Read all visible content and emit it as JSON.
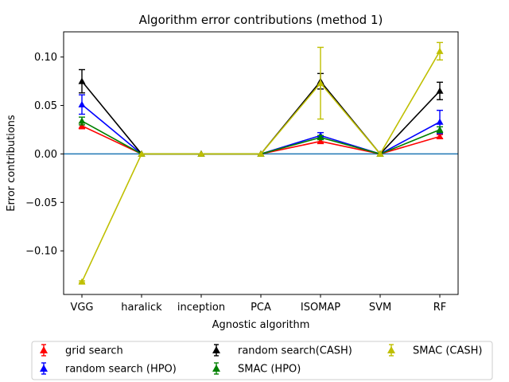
{
  "chart_data": {
    "type": "line",
    "title": "Algorithm error contributions (method 1)",
    "xlabel": "Agnostic algorithm",
    "ylabel": "Error contributions",
    "categories": [
      "VGG",
      "haralick",
      "inception",
      "PCA",
      "ISOMAP",
      "SVM",
      "RF"
    ],
    "ylim": [
      -0.145,
      0.126
    ],
    "yticks": [
      0.1,
      0.05,
      0.0,
      -0.05,
      -0.1
    ],
    "ytick_labels": [
      "0.10",
      "0.05",
      "0.00",
      "−0.05",
      "−0.10"
    ],
    "hline": 0.0,
    "hline_color": "#1f77b4",
    "legend_position": "bottom-center",
    "series": [
      {
        "name": "grid search",
        "color": "#ff0000",
        "values": [
          0.029,
          0.0,
          0.0,
          0.0,
          0.013,
          0.0,
          0.018
        ],
        "errors": [
          0.003,
          0.0,
          0.0,
          0.0,
          0.002,
          0.0,
          0.002
        ]
      },
      {
        "name": "random search (HPO)",
        "color": "#0000ff",
        "values": [
          0.051,
          0.0,
          0.0,
          0.0,
          0.019,
          0.0,
          0.033
        ],
        "errors": [
          0.01,
          0.0,
          0.0,
          0.0,
          0.003,
          0.0,
          0.012
        ]
      },
      {
        "name": "random search(CASH)",
        "color": "#000000",
        "values": [
          0.075,
          0.0,
          0.0,
          0.0,
          0.075,
          0.0,
          0.065
        ],
        "errors": [
          0.012,
          0.0,
          0.0,
          0.0,
          0.008,
          0.0,
          0.009
        ]
      },
      {
        "name": "SMAC (HPO)",
        "color": "#008000",
        "values": [
          0.034,
          0.0,
          0.0,
          0.0,
          0.017,
          0.0,
          0.025
        ],
        "errors": [
          0.004,
          0.0,
          0.0,
          0.0,
          0.002,
          0.0,
          0.003
        ]
      },
      {
        "name": "SMAC (CASH)",
        "color": "#bfbf00",
        "values": [
          -0.132,
          0.0,
          0.0,
          0.0,
          0.073,
          0.0,
          0.106
        ],
        "errors": [
          0.001,
          0.0,
          0.0,
          0.0,
          0.037,
          0.0,
          0.009
        ]
      }
    ]
  }
}
